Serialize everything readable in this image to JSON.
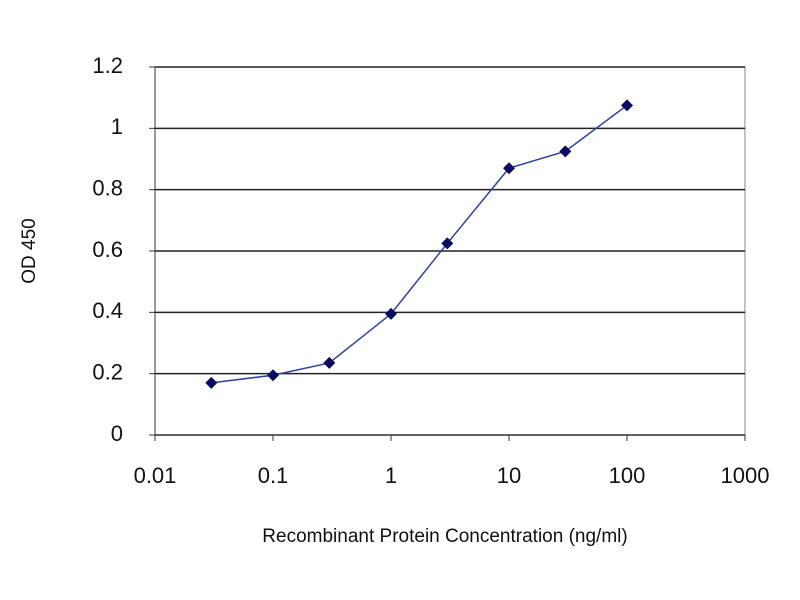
{
  "chart_data": {
    "type": "line",
    "x_label": "Recombinant Protein Concentration (ng/ml)",
    "y_label": "OD 450",
    "xscale": "log",
    "x": [
      0.03,
      0.1,
      0.3,
      1,
      3,
      10,
      30,
      100
    ],
    "series": [
      {
        "color": "#3040a0",
        "values": [
          0.17,
          0.195,
          0.235,
          0.395,
          0.625,
          0.87,
          0.925,
          1.075
        ]
      }
    ],
    "marker_color": "#0a0a60",
    "xlim": [
      0.01,
      1000
    ],
    "xticks": [
      0.01,
      0.1,
      1,
      10,
      100,
      1000
    ],
    "ylim": [
      0,
      1.2
    ],
    "yticks": [
      0,
      0.2,
      0.4,
      0.6,
      0.8,
      1,
      1.2
    ],
    "grid": true
  }
}
